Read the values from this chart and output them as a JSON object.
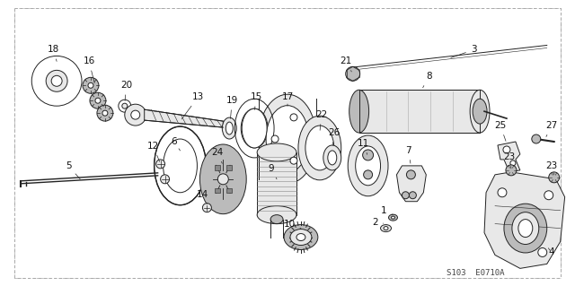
{
  "bg_color": "#ffffff",
  "border_color": "#888888",
  "diagram_code": "S103  E0710A",
  "fig_width": 6.4,
  "fig_height": 3.19,
  "dpi": 100,
  "label_fontsize": 7.5,
  "label_color": "#111111",
  "border_dashes": [
    3,
    3
  ],
  "border_lw": 0.7,
  "ec": "#222222",
  "fc_light": "#e8e8e8",
  "fc_med": "#bbbbbb",
  "fc_dark": "#888888",
  "fc_white": "#ffffff"
}
